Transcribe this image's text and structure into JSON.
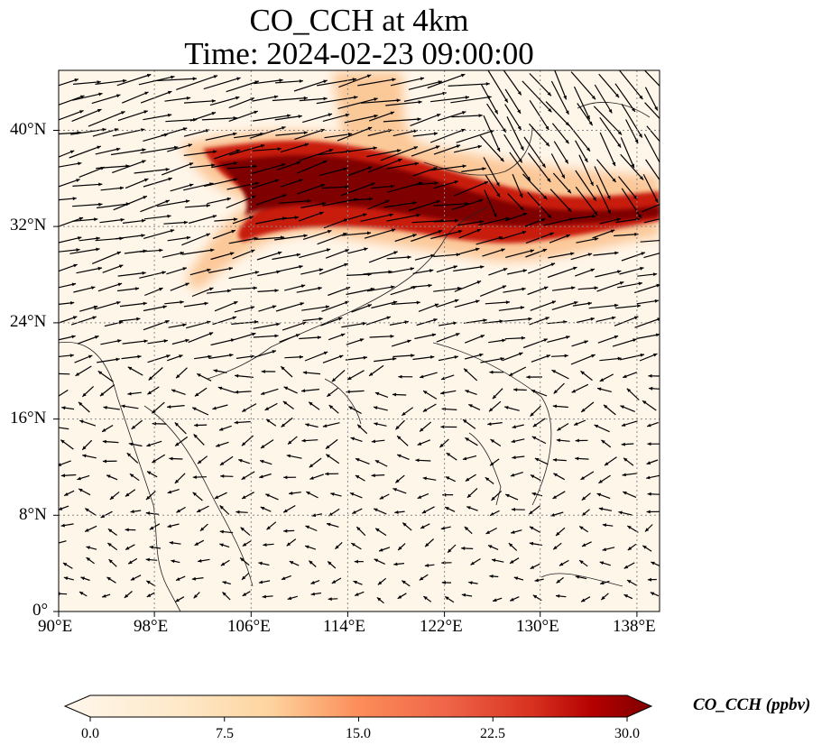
{
  "title": {
    "line1": "CO_CCH at 4km",
    "line2": "Time: 2024-02-23 09:00:00"
  },
  "map": {
    "variable": "CO_CCH",
    "level": "4km",
    "extent": {
      "lon": [
        90,
        139
      ],
      "lat": [
        0,
        45
      ]
    },
    "lon_ticks": [
      "90°E",
      "98°E",
      "106°E",
      "114°E",
      "122°E",
      "130°E",
      "138°E"
    ],
    "lat_ticks": [
      "0°",
      "8°N",
      "16°N",
      "24°N",
      "32°N",
      "40°N"
    ],
    "gridlines": "dotted",
    "colormap": "OrRd",
    "colors": {
      "low": "#fff7ec",
      "mid": "#fc8d59",
      "high": "#7f0000",
      "vectors": "#000000",
      "coastline": "#222222"
    }
  },
  "colorbar": {
    "label": "CO_CCH (ppbv)",
    "min": 0.0,
    "max": 30.0,
    "ticks": [
      "0.0",
      "7.5",
      "15.0",
      "22.5",
      "30.0"
    ],
    "extend": "both",
    "orientation": "horizontal"
  }
}
